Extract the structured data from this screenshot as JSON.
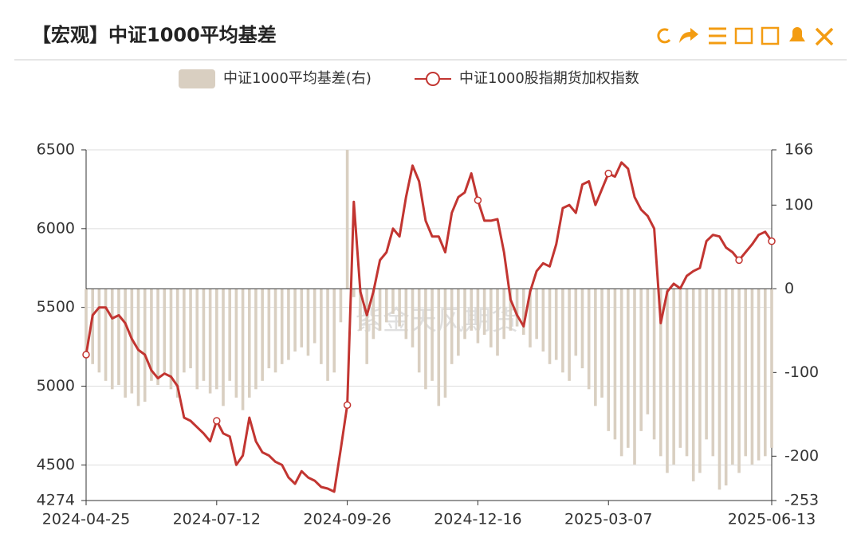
{
  "chart_data": {
    "type": "bar-line",
    "title": "【宏观】中证1000平均基差",
    "watermark": "紫金天风期货",
    "categories": [
      "2024-04-25",
      null,
      null,
      null,
      null,
      null,
      null,
      null,
      null,
      null,
      null,
      null,
      null,
      null,
      null,
      null,
      null,
      null,
      null,
      null,
      "2024-07-12",
      null,
      null,
      null,
      null,
      null,
      null,
      null,
      null,
      null,
      null,
      null,
      null,
      null,
      null,
      null,
      null,
      null,
      null,
      null,
      "2024-09-26",
      null,
      null,
      null,
      null,
      null,
      null,
      null,
      null,
      null,
      null,
      null,
      null,
      null,
      null,
      null,
      null,
      null,
      null,
      null,
      "2024-12-16",
      null,
      null,
      null,
      null,
      null,
      null,
      null,
      null,
      null,
      null,
      null,
      null,
      null,
      null,
      null,
      null,
      null,
      null,
      null,
      "2025-03-07",
      null,
      null,
      null,
      null,
      null,
      null,
      null,
      null,
      null,
      null,
      null,
      null,
      null,
      null,
      null,
      null,
      null,
      null,
      null,
      null,
      null,
      null,
      null,
      null,
      "2025-06-13"
    ],
    "series": [
      {
        "name": "中证1000平均基差(右)",
        "type": "bar",
        "axis": "y2",
        "color": "#d9cfc1",
        "values": [
          -80,
          -90,
          -100,
          -110,
          -120,
          -115,
          -130,
          -125,
          -140,
          -135,
          -110,
          -115,
          -100,
          -120,
          -130,
          -100,
          -95,
          -120,
          -110,
          -125,
          -120,
          -140,
          -110,
          -130,
          -145,
          -130,
          -120,
          -110,
          -95,
          -100,
          -90,
          -85,
          -75,
          -70,
          -80,
          -65,
          -90,
          -110,
          -100,
          -40,
          166,
          -10,
          -50,
          -90,
          -60,
          -50,
          -40,
          -30,
          -45,
          -60,
          -70,
          -100,
          -120,
          -110,
          -140,
          -130,
          -90,
          -80,
          -60,
          -50,
          -65,
          -55,
          -70,
          -80,
          -60,
          -50,
          -45,
          -55,
          -70,
          -60,
          -75,
          -90,
          -85,
          -100,
          -110,
          -80,
          -95,
          -120,
          -140,
          -130,
          -170,
          -180,
          -200,
          -190,
          -210,
          -170,
          -150,
          -180,
          -200,
          -220,
          -210,
          -190,
          -200,
          -230,
          -220,
          -180,
          -200,
          -240,
          -235,
          -210,
          -220,
          -200,
          -210,
          -205,
          -200,
          -190
        ]
      },
      {
        "name": "中证1000股指期货加权指数",
        "type": "line",
        "axis": "y",
        "color": "#c23531",
        "values": [
          5200,
          5450,
          5500,
          5500,
          5430,
          5450,
          5400,
          5300,
          5230,
          5200,
          5100,
          5050,
          5080,
          5060,
          5000,
          4800,
          4780,
          4740,
          4700,
          4650,
          4780,
          4700,
          4680,
          4500,
          4560,
          4800,
          4650,
          4580,
          4560,
          4520,
          4500,
          4420,
          4380,
          4460,
          4420,
          4400,
          4360,
          4350,
          4330,
          4600,
          4880,
          6170,
          5600,
          5450,
          5600,
          5800,
          5850,
          6000,
          5950,
          6200,
          6400,
          6300,
          6050,
          5950,
          5950,
          5850,
          6100,
          6200,
          6230,
          6350,
          6180,
          6050,
          6050,
          6060,
          5850,
          5550,
          5450,
          5380,
          5600,
          5730,
          5780,
          5760,
          5900,
          6130,
          6150,
          6100,
          6280,
          6300,
          6150,
          6250,
          6350,
          6330,
          6420,
          6380,
          6200,
          6120,
          6080,
          6000,
          5400,
          5600,
          5650,
          5620,
          5700,
          5730,
          5750,
          5920,
          5960,
          5950,
          5880,
          5850,
          5800,
          5850,
          5900,
          5960,
          5980,
          5920
        ]
      }
    ],
    "ylim": [
      4274,
      6500
    ],
    "yticks": [
      4274,
      4500,
      5000,
      5500,
      6000,
      6500
    ],
    "y2lim": [
      -253,
      166
    ],
    "y2ticks": [
      -253,
      -200,
      -100,
      0,
      100,
      166
    ],
    "grid": true,
    "legend": "top"
  }
}
